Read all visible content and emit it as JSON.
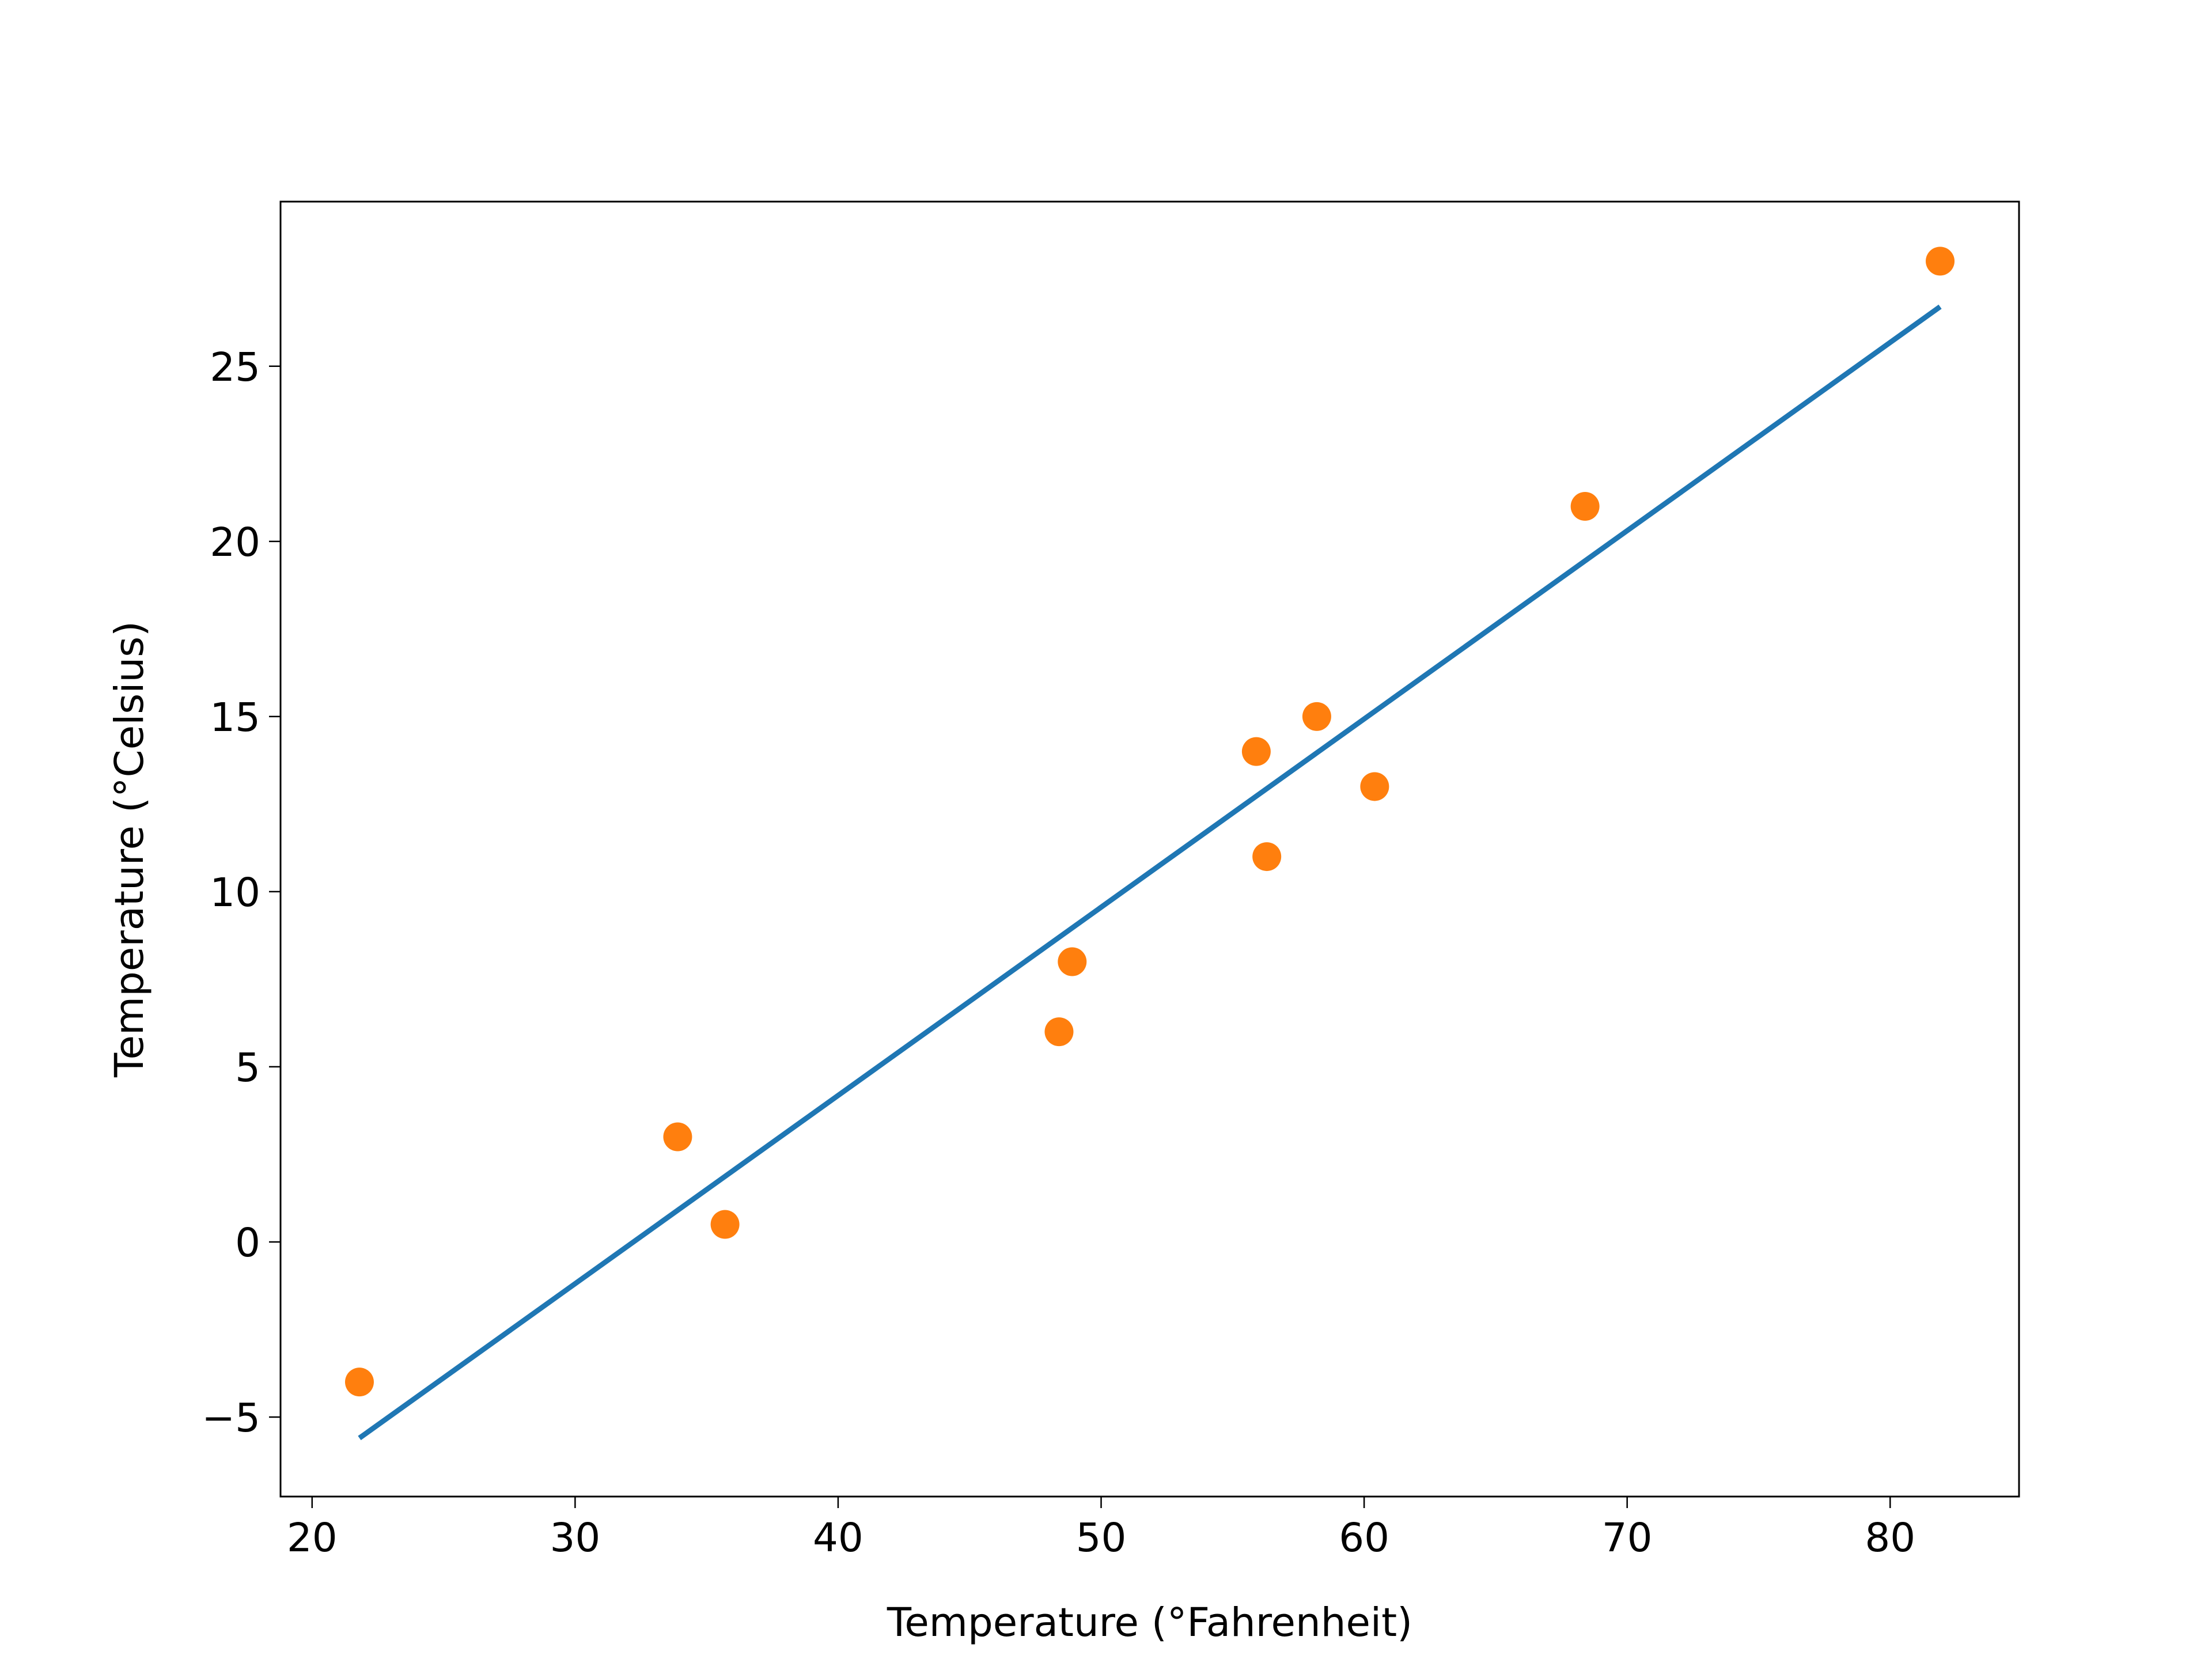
{
  "chart_data": {
    "type": "scatter",
    "xlabel": "Temperature (°Fahrenheit)",
    "ylabel": "Temperature (°Celsius)",
    "series": [
      {
        "type": "line",
        "color": "#1f77b4",
        "x": [
          21.8,
          81.9
        ],
        "values": [
          -5.6,
          26.7
        ]
      },
      {
        "type": "scatter",
        "color": "#ff7f0e",
        "x": [
          35.7,
          55.9,
          58.2,
          81.9,
          56.3,
          48.9,
          33.9,
          21.8,
          48.4,
          60.4,
          68.4
        ],
        "values": [
          0.5,
          14.0,
          15.0,
          28.0,
          11.0,
          8.0,
          3.0,
          -4.0,
          6.0,
          13.0,
          21.0
        ]
      }
    ],
    "xlim": [
      18.8,
      84.9
    ],
    "xticks": [
      20,
      30,
      40,
      50,
      60,
      70,
      80
    ],
    "ylim": [
      -7.27,
      29.7
    ],
    "yticks": [
      {
        "value": -5,
        "label": "−5"
      },
      0,
      5,
      10,
      15,
      20,
      25
    ],
    "grid": false
  }
}
